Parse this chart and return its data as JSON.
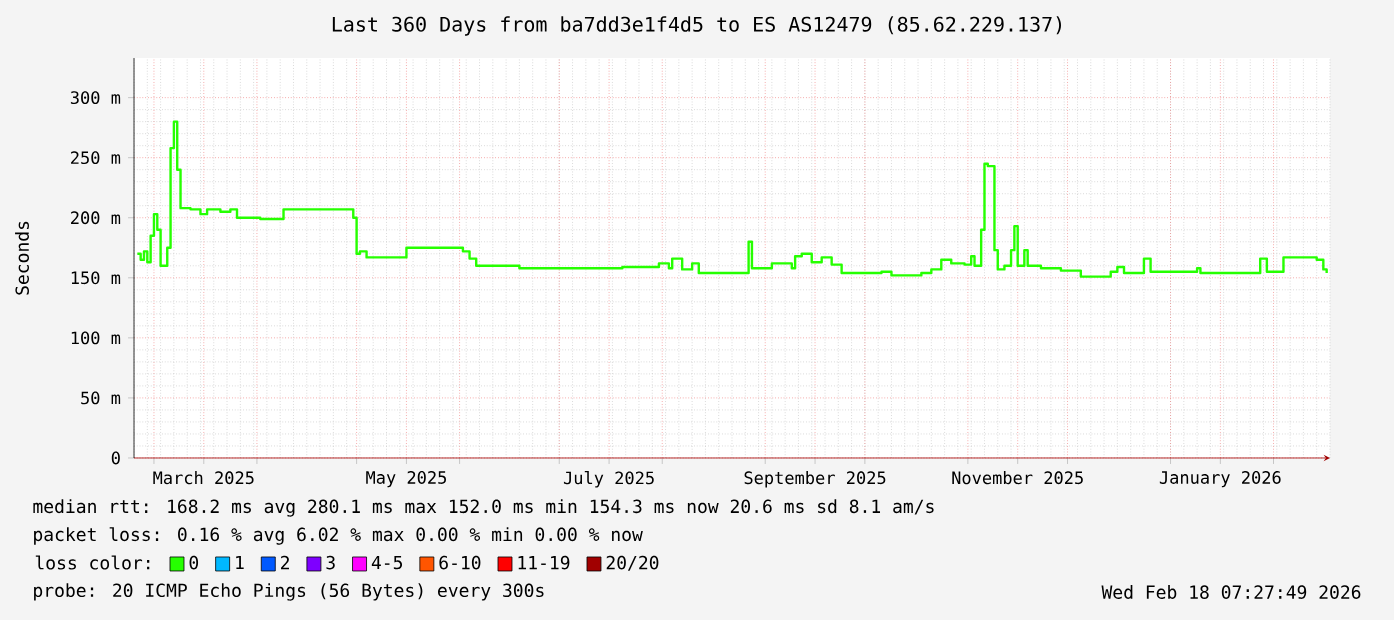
{
  "chart_data": {
    "type": "step",
    "title": "Last 360 Days from ba7dd3e1f4d5 to ES AS12479 (85.62.229.137)",
    "ylabel": "Seconds",
    "legend_title": "loss color:",
    "legend": "bottom",
    "grid": true,
    "xlim": [
      "2025-02-23",
      "2026-02-18"
    ],
    "xticks": [
      {
        "value": "2025-03-01",
        "label": null
      },
      {
        "value": "2025-03-16",
        "label": "March 2025"
      },
      {
        "value": "2025-04-01",
        "label": null
      },
      {
        "value": "2025-05-01",
        "label": null
      },
      {
        "value": "2025-05-16",
        "label": "May 2025"
      },
      {
        "value": "2025-06-01",
        "label": null
      },
      {
        "value": "2025-07-01",
        "label": null
      },
      {
        "value": "2025-07-16",
        "label": "July 2025"
      },
      {
        "value": "2025-08-01",
        "label": null
      },
      {
        "value": "2025-09-01",
        "label": null
      },
      {
        "value": "2025-09-16",
        "label": "September 2025"
      },
      {
        "value": "2025-10-01",
        "label": null
      },
      {
        "value": "2025-11-01",
        "label": null
      },
      {
        "value": "2025-11-16",
        "label": "November 2025"
      },
      {
        "value": "2025-12-01",
        "label": null
      },
      {
        "value": "2026-01-01",
        "label": null
      },
      {
        "value": "2026-01-16",
        "label": "January 2026"
      },
      {
        "value": "2026-02-01",
        "label": null
      }
    ],
    "ylim": [
      0,
      333
    ],
    "yticks": [
      0,
      {
        "value": 50,
        "label": "50 m"
      },
      {
        "value": 100,
        "label": "100 m"
      },
      {
        "value": 150,
        "label": "150 m"
      },
      {
        "value": 200,
        "label": "200 m"
      },
      {
        "value": 250,
        "label": "250 m"
      },
      {
        "value": 300,
        "label": "300 m"
      }
    ],
    "x": [
      "2025-02-24",
      "2025-02-25",
      "2025-02-26",
      "2025-02-27",
      "2025-02-28",
      "2025-03-01",
      "2025-03-02",
      "2025-03-03",
      "2025-03-05",
      "2025-03-06",
      "2025-03-07",
      "2025-03-08",
      "2025-03-09",
      "2025-03-12",
      "2025-03-15",
      "2025-03-17",
      "2025-03-21",
      "2025-03-24",
      "2025-03-26",
      "2025-04-02",
      "2025-04-09",
      "2025-04-28",
      "2025-04-30",
      "2025-05-01",
      "2025-05-02",
      "2025-05-04",
      "2025-05-15",
      "2025-05-16",
      "2025-05-31",
      "2025-06-02",
      "2025-06-04",
      "2025-06-06",
      "2025-06-19",
      "2025-07-08",
      "2025-07-20",
      "2025-07-31",
      "2025-08-03",
      "2025-08-04",
      "2025-08-07",
      "2025-08-10",
      "2025-08-12",
      "2025-08-26",
      "2025-08-27",
      "2025-08-28",
      "2025-09-03",
      "2025-09-09",
      "2025-09-10",
      "2025-09-12",
      "2025-09-15",
      "2025-09-18",
      "2025-09-21",
      "2025-09-24",
      "2025-10-06",
      "2025-10-09",
      "2025-10-18",
      "2025-10-21",
      "2025-10-24",
      "2025-10-27",
      "2025-10-31",
      "2025-11-02",
      "2025-11-03",
      "2025-11-05",
      "2025-11-06",
      "2025-11-07",
      "2025-11-09",
      "2025-11-10",
      "2025-11-12",
      "2025-11-14",
      "2025-11-15",
      "2025-11-16",
      "2025-11-18",
      "2025-11-19",
      "2025-11-23",
      "2025-11-29",
      "2025-12-05",
      "2025-12-14",
      "2025-12-16",
      "2025-12-18",
      "2025-12-24",
      "2025-12-26",
      "2026-01-09",
      "2026-01-10",
      "2026-01-28",
      "2026-01-30",
      "2026-02-04",
      "2026-02-14",
      "2026-02-16",
      "2026-02-17"
    ],
    "series": [
      {
        "name": "0",
        "color": "#26ff00",
        "values": [
          170,
          165,
          172,
          163,
          185,
          203,
          190,
          160,
          175,
          258,
          280,
          240,
          208,
          207,
          203,
          207,
          205,
          207,
          200,
          199,
          207,
          207,
          200,
          170,
          172,
          167,
          167,
          175,
          175,
          172,
          166,
          160,
          158,
          158,
          159,
          162,
          158,
          166,
          157,
          162,
          154,
          154,
          180,
          158,
          162,
          158,
          168,
          170,
          163,
          167,
          161,
          154,
          155,
          152,
          154,
          157,
          165,
          162,
          161,
          168,
          160,
          190,
          245,
          243,
          173,
          157,
          160,
          173,
          193,
          160,
          173,
          160,
          158,
          156,
          151,
          155,
          159,
          154,
          166,
          155,
          158,
          154,
          166,
          155,
          167,
          165,
          157,
          154
        ]
      },
      {
        "name": "1",
        "color": "#00b8ff",
        "values": [
          null,
          null,
          null,
          null,
          null,
          null,
          null,
          null,
          null,
          null,
          null,
          null,
          null,
          null,
          null,
          null,
          null,
          null,
          null,
          null,
          null,
          null,
          null,
          null,
          null,
          null,
          null,
          null,
          null,
          null,
          null,
          null,
          null,
          null,
          null,
          null,
          null,
          null,
          null,
          null,
          null,
          null,
          null,
          null,
          null,
          null,
          null,
          null,
          null,
          null,
          null,
          null,
          null,
          null,
          null,
          null,
          null,
          null,
          null,
          null,
          null,
          null,
          null,
          null,
          null,
          null,
          null,
          null,
          null,
          null,
          null,
          null,
          null,
          null,
          null,
          null,
          null,
          null,
          null,
          null,
          null,
          null,
          null,
          null,
          null,
          null,
          null,
          null
        ]
      },
      {
        "name": "2",
        "color": "#0059ff",
        "values": [
          null,
          null,
          null,
          null,
          null,
          null,
          null,
          null,
          null,
          null,
          null,
          null,
          null,
          null,
          null,
          null,
          null,
          null,
          null,
          null,
          null,
          null,
          null,
          null,
          null,
          null,
          null,
          null,
          null,
          null,
          null,
          null,
          null,
          null,
          null,
          null,
          null,
          null,
          null,
          null,
          null,
          null,
          null,
          null,
          null,
          null,
          null,
          null,
          null,
          null,
          null,
          null,
          null,
          null,
          null,
          null,
          null,
          null,
          null,
          null,
          null,
          null,
          null,
          null,
          null,
          null,
          null,
          null,
          null,
          null,
          null,
          null,
          null,
          null,
          null,
          null,
          null,
          null,
          null,
          null,
          null,
          null,
          null,
          null,
          null,
          null,
          null,
          null
        ]
      },
      {
        "name": "3",
        "color": "#7e00ff",
        "values": [
          null,
          null,
          null,
          null,
          null,
          null,
          null,
          null,
          null,
          null,
          null,
          null,
          null,
          null,
          null,
          null,
          null,
          null,
          null,
          null,
          null,
          null,
          null,
          null,
          null,
          null,
          null,
          null,
          null,
          null,
          null,
          null,
          null,
          null,
          null,
          null,
          null,
          null,
          null,
          null,
          null,
          null,
          null,
          null,
          null,
          null,
          null,
          null,
          null,
          null,
          null,
          null,
          null,
          null,
          null,
          null,
          null,
          null,
          null,
          null,
          null,
          null,
          null,
          null,
          null,
          null,
          null,
          null,
          null,
          null,
          null,
          null,
          null,
          null,
          null,
          null,
          null,
          null,
          null,
          null,
          null,
          null,
          null,
          null,
          null,
          null,
          null,
          null
        ]
      },
      {
        "name": "4-5",
        "color": "#ff00ff",
        "values": [
          null,
          null,
          null,
          null,
          null,
          null,
          null,
          null,
          null,
          null,
          null,
          null,
          null,
          null,
          null,
          null,
          null,
          null,
          null,
          null,
          null,
          null,
          null,
          null,
          null,
          null,
          null,
          null,
          null,
          null,
          null,
          null,
          null,
          null,
          null,
          null,
          null,
          null,
          null,
          null,
          null,
          null,
          null,
          null,
          null,
          null,
          null,
          null,
          null,
          null,
          null,
          null,
          null,
          null,
          null,
          null,
          null,
          null,
          null,
          null,
          null,
          null,
          null,
          null,
          null,
          null,
          null,
          null,
          null,
          null,
          null,
          null,
          null,
          null,
          null,
          null,
          null,
          null,
          null,
          null,
          null,
          null,
          null,
          null,
          null,
          null,
          null,
          null
        ]
      },
      {
        "name": "6-10",
        "color": "#ff5500",
        "values": [
          null,
          null,
          null,
          null,
          null,
          null,
          null,
          null,
          null,
          null,
          null,
          null,
          null,
          null,
          null,
          null,
          null,
          null,
          null,
          null,
          null,
          null,
          null,
          null,
          null,
          null,
          null,
          null,
          null,
          null,
          null,
          null,
          null,
          null,
          null,
          null,
          null,
          null,
          null,
          null,
          null,
          null,
          null,
          null,
          null,
          null,
          null,
          null,
          null,
          null,
          null,
          null,
          null,
          null,
          null,
          null,
          null,
          null,
          null,
          null,
          null,
          null,
          null,
          null,
          null,
          null,
          null,
          null,
          null,
          null,
          null,
          null,
          null,
          null,
          null,
          null,
          null,
          null,
          null,
          null,
          null,
          null,
          null,
          null,
          null,
          null,
          null,
          null
        ]
      },
      {
        "name": "11-19",
        "color": "#ff0000",
        "values": [
          null,
          null,
          null,
          null,
          null,
          null,
          null,
          null,
          null,
          null,
          null,
          null,
          null,
          null,
          null,
          null,
          null,
          null,
          null,
          null,
          null,
          null,
          null,
          null,
          null,
          null,
          null,
          null,
          null,
          null,
          null,
          null,
          null,
          null,
          null,
          null,
          null,
          null,
          null,
          null,
          null,
          null,
          null,
          null,
          null,
          null,
          null,
          null,
          null,
          null,
          null,
          null,
          null,
          null,
          null,
          null,
          null,
          null,
          null,
          null,
          null,
          null,
          null,
          null,
          null,
          null,
          null,
          null,
          null,
          null,
          null,
          null,
          null,
          null,
          null,
          null,
          null,
          null,
          null,
          null,
          null,
          null,
          null,
          null,
          null,
          null,
          null,
          null
        ]
      },
      {
        "name": "20/20",
        "color": "#a10000",
        "values": [
          null,
          null,
          null,
          null,
          null,
          null,
          null,
          null,
          null,
          null,
          null,
          null,
          null,
          null,
          null,
          null,
          null,
          null,
          null,
          null,
          null,
          null,
          null,
          null,
          null,
          null,
          null,
          null,
          null,
          null,
          null,
          null,
          null,
          null,
          null,
          null,
          null,
          null,
          null,
          null,
          null,
          null,
          null,
          null,
          null,
          null,
          null,
          null,
          null,
          null,
          null,
          null,
          null,
          null,
          null,
          null,
          null,
          null,
          null,
          null,
          null,
          null,
          null,
          null,
          null,
          null,
          null,
          null,
          null,
          null,
          null,
          null,
          null,
          null,
          null,
          null,
          null,
          null,
          null,
          null,
          null,
          null,
          null,
          null,
          null,
          null,
          null,
          null
        ]
      }
    ],
    "annotations": [
      "median rtt: 168.2 ms avg 280.1 ms max 152.0 ms min 154.3 ms now 20.6 ms sd 8.1 am/s",
      "packet loss: 0.16 % avg 6.02 % max 0.00 % min 0.00 % now",
      "probe: 20 ICMP Echo Pings (56 Bytes) every 300s",
      "Wed Feb 18 07:27:49 2026"
    ]
  }
}
